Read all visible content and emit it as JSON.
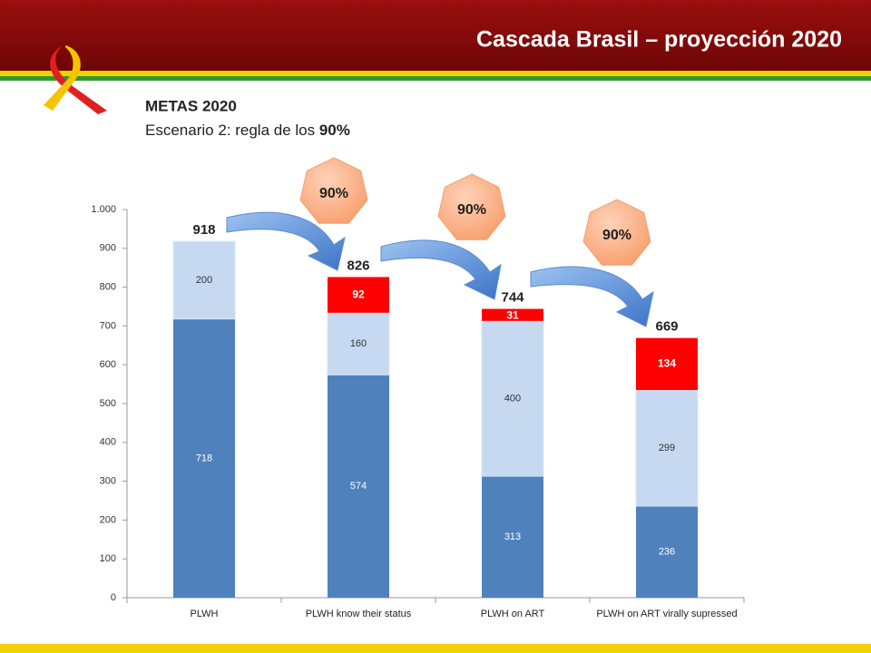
{
  "chart_data": {
    "type": "stacked_bar",
    "title": "Cascada Brasil – proyección 2020",
    "heading": "METAS 2020",
    "subtitle": "Escenario 2:  regla de los",
    "subtitle_bold": "90%",
    "categories": [
      "PLWH",
      "PLWH know their status",
      "PLWH on ART",
      "PLWH on ART virally supressed"
    ],
    "series": [
      {
        "color": "#4f81bd",
        "values": [
          718,
          574,
          313,
          236
        ]
      },
      {
        "color": "#c6d9f1",
        "values": [
          200,
          160,
          400,
          299
        ]
      },
      {
        "color": "#ff0000",
        "values": [
          null,
          92,
          31,
          134
        ]
      }
    ],
    "totals": [
      918,
      826,
      744,
      669
    ],
    "annotations": [
      "90%",
      "90%",
      "90%"
    ],
    "ylim": [
      0,
      1000
    ],
    "yticks": [
      0,
      100,
      200,
      300,
      400,
      500,
      600,
      700,
      800,
      900,
      {
        "value": 1000,
        "label": "1.000"
      }
    ],
    "grid": false
  }
}
